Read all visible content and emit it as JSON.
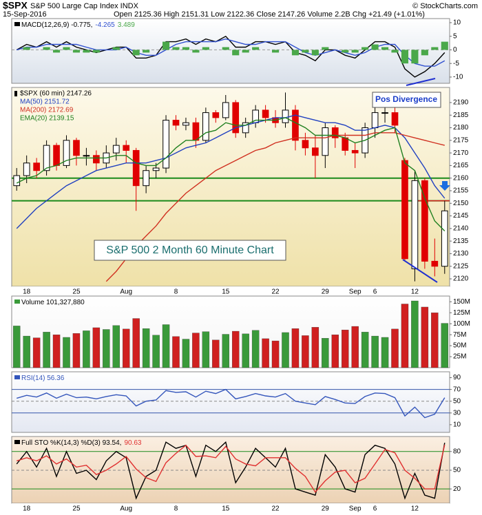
{
  "header": {
    "symbol": "$SPX",
    "name": "S&P 500 Large Cap Index INDX",
    "date": "15-Sep-2016",
    "quote": "Open 2125.36 High 2151.31 Low 2122.36 Close 2147.26 Volume 2.2B Chg +21.49 (+1.01%)",
    "credit": "© StockCharts.com"
  },
  "chart_data": [
    {
      "type": "line",
      "ylim": [
        -12.3,
        11.5
      ],
      "yticks": [
        10,
        5,
        0,
        -5,
        -10
      ],
      "levels": [
        0
      ],
      "level_color": "#999999",
      "series": [
        {
          "name": "MACD(12,26,9) -0.775,",
          "type": "line",
          "color": "#000000",
          "values": [
            0,
            2,
            1,
            3,
            1,
            3,
            1,
            0,
            -1,
            0,
            1,
            1,
            -3,
            -3,
            -2,
            3,
            3,
            4,
            2,
            4,
            3,
            5,
            1,
            1,
            3,
            3,
            2,
            3,
            -1,
            -2,
            -4,
            0,
            0,
            -2,
            -3,
            0,
            3,
            3,
            1,
            -7,
            -10,
            -8,
            -5,
            -1
          ]
        },
        {
          "name": "-4.265",
          "type": "line",
          "color": "#3050d0",
          "values": [
            0,
            1,
            1,
            2,
            2,
            2,
            2,
            1,
            0,
            0,
            0,
            1,
            -1,
            -2,
            -2,
            0,
            2,
            3,
            3,
            3,
            3,
            4,
            3,
            2,
            2,
            3,
            3,
            3,
            1,
            -1,
            -2,
            -1,
            0,
            -1,
            -2,
            -1,
            1,
            2,
            2,
            -2,
            -5,
            -6,
            -6,
            -4
          ]
        },
        {
          "name": "3.489",
          "type": "bar",
          "color": "#4aa84a",
          "values": [
            0,
            1,
            0,
            1,
            -1,
            1,
            -1,
            -1,
            -1,
            0,
            1,
            0,
            -2,
            -1,
            0,
            3,
            1,
            1,
            -1,
            1,
            0,
            1,
            -2,
            -1,
            1,
            0,
            -1,
            0,
            -2,
            -1,
            -2,
            1,
            0,
            -1,
            -1,
            1,
            2,
            1,
            -1,
            -5,
            -5,
            -2,
            1,
            3
          ]
        }
      ]
    },
    {
      "type": "candlestick",
      "name": "$SPX (60 min) 2147.26",
      "up_color": "#000000",
      "down_color": "#e00000",
      "categories": [
        null,
        "18",
        null,
        null,
        null,
        null,
        "25",
        null,
        null,
        null,
        null,
        "Aug",
        null,
        null,
        null,
        null,
        "8",
        null,
        null,
        null,
        null,
        "15",
        null,
        null,
        null,
        null,
        "22",
        null,
        null,
        null,
        null,
        "29",
        null,
        null,
        "Sep",
        null,
        "6",
        null,
        null,
        null,
        "12",
        null,
        null,
        null
      ],
      "open": [
        2157,
        2161,
        2166,
        2163,
        2173,
        2165,
        2175,
        2169,
        2169,
        2166,
        2170,
        2173,
        2171,
        2157,
        2163,
        2164,
        2183,
        2181,
        2182,
        2175,
        2186,
        2184,
        2190,
        2178,
        2182,
        2187,
        2184,
        2182,
        2187,
        2175,
        2172,
        2169,
        2180,
        2176,
        2171,
        2170,
        2180,
        2186,
        2186,
        2167,
        2124,
        2159,
        2127,
        2125
      ],
      "high": [
        2164,
        2169,
        2168,
        2175,
        2174,
        2177,
        2176,
        2172,
        2171,
        2173,
        2176,
        2175,
        2172,
        2165,
        2166,
        2185,
        2185,
        2184,
        2184,
        2188,
        2187,
        2193,
        2191,
        2184,
        2189,
        2189,
        2187,
        2194,
        2189,
        2178,
        2177,
        2182,
        2181,
        2178,
        2174,
        2182,
        2188,
        2188,
        2188,
        2168,
        2163,
        2160,
        2136,
        2151
      ],
      "low": [
        2155,
        2158,
        2160,
        2161,
        2163,
        2164,
        2165,
        2165,
        2163,
        2164,
        2167,
        2166,
        2147,
        2154,
        2160,
        2162,
        2179,
        2179,
        2172,
        2174,
        2182,
        2183,
        2176,
        2176,
        2180,
        2182,
        2180,
        2180,
        2171,
        2169,
        2160,
        2164,
        2172,
        2169,
        2164,
        2168,
        2176,
        2182,
        2178,
        2127,
        2119,
        2124,
        2121,
        2122
      ],
      "close": [
        2161,
        2166,
        2163,
        2173,
        2165,
        2175,
        2169,
        2169,
        2166,
        2170,
        2173,
        2171,
        2157,
        2163,
        2164,
        2183,
        2181,
        2182,
        2175,
        2186,
        2184,
        2190,
        2178,
        2182,
        2187,
        2184,
        2182,
        2187,
        2175,
        2172,
        2169,
        2180,
        2176,
        2171,
        2170,
        2180,
        2186,
        2186,
        2181,
        2128,
        2159,
        2127,
        2125,
        2147
      ],
      "ylim": [
        2117,
        2196
      ],
      "yticks": [
        2120,
        2125,
        2130,
        2135,
        2140,
        2145,
        2150,
        2155,
        2160,
        2165,
        2170,
        2175,
        2180,
        2185,
        2190
      ],
      "levels": [
        2160,
        2151
      ],
      "level_color": "#1a8a1a",
      "resistance_color": "#e02020",
      "series": [
        {
          "name": "MA(50) 2151.72",
          "type": "line",
          "color": "#2040c0",
          "values": [
            2140,
            2144,
            2148,
            2151,
            2154,
            2157,
            2159,
            2161,
            2163,
            2164,
            2165,
            2166,
            2166,
            2166,
            2167,
            2168,
            2170,
            2172,
            2173,
            2174,
            2176,
            2178,
            2180,
            2181,
            2182,
            2183,
            2184,
            2184,
            2185,
            2184,
            2183,
            2182,
            2182,
            2181,
            2179,
            2179,
            2180,
            2181,
            2180,
            2176,
            2170,
            2164,
            2157,
            2152
          ]
        },
        {
          "name": "MA(200) 2172.69",
          "type": "line",
          "color": "#d03020",
          "values": [
            null,
            null,
            null,
            null,
            null,
            null,
            null,
            null,
            null,
            2119,
            2123,
            2128,
            2133,
            2137,
            2141,
            2146,
            2150,
            2154,
            2157,
            2160,
            2163,
            2165,
            2167,
            2169,
            2171,
            2172,
            2174,
            2175,
            2176,
            2176,
            2176,
            2176,
            2177,
            2177,
            2177,
            2177,
            2178,
            2178,
            2178,
            2177,
            2176,
            2175,
            2174,
            2173
          ]
        },
        {
          "name": "EMA(20) 2139.15",
          "type": "line",
          "color": "#208020",
          "values": [
            2158,
            2160,
            2161,
            2164,
            2165,
            2167,
            2168,
            2168,
            2168,
            2168,
            2169,
            2169,
            2166,
            2165,
            2165,
            2168,
            2172,
            2175,
            2175,
            2178,
            2179,
            2182,
            2181,
            2181,
            2183,
            2183,
            2183,
            2184,
            2182,
            2180,
            2177,
            2177,
            2177,
            2176,
            2174,
            2175,
            2177,
            2179,
            2180,
            2166,
            2163,
            2152,
            2143,
            2139
          ]
        }
      ],
      "annotations": [
        "Pos Divergence",
        "S&P 500 2 Month 60 Minute Chart"
      ]
    },
    {
      "type": "bar",
      "ylim": [
        0,
        163000000
      ],
      "up_color": "#3a9a3a",
      "down_color": "#d02020",
      "yticks": [
        {
          "value": 25000000,
          "label": "25M"
        },
        {
          "value": 50000000,
          "label": "50M"
        },
        {
          "value": 75000000,
          "label": "75M"
        },
        {
          "value": 100000000,
          "label": "100M"
        },
        {
          "value": 125000000,
          "label": "125M"
        },
        {
          "value": 150000000,
          "label": "150M"
        }
      ],
      "series": [
        {
          "name": "Volume 101,327,880",
          "type": "bar",
          "values": [
            95000000.0,
            72000000.0,
            68000000.0,
            81000000.0,
            75000000.0,
            69000000.0,
            78000000.0,
            84000000.0,
            91000000.0,
            87000000.0,
            96000000.0,
            88000000.0,
            112000000.0,
            89000000.0,
            74000000.0,
            98000000.0,
            71000000.0,
            65000000.0,
            79000000.0,
            82000000.0,
            63000000.0,
            76000000.0,
            83000000.0,
            77000000.0,
            85000000.0,
            66000000.0,
            61000000.0,
            80000000.0,
            89000000.0,
            73000000.0,
            92000000.0,
            67000000.0,
            75000000.0,
            86000000.0,
            94000000.0,
            81000000.0,
            72000000.0,
            69000000.0,
            88000000.0,
            145000000.0,
            152000000.0,
            138000000.0,
            125000000.0,
            101000000.0
          ]
        }
      ]
    },
    {
      "type": "line",
      "ylim": [
        -3,
        100
      ],
      "yticks": [
        10,
        30,
        50,
        70,
        90
      ],
      "levels": [
        70,
        50,
        30
      ],
      "level_color": "#3355aa",
      "series": [
        {
          "name": "RSI(14) 56.36",
          "type": "line",
          "color": "#3355bb",
          "values": [
            55,
            60,
            57,
            64,
            55,
            62,
            56,
            57,
            54,
            58,
            61,
            59,
            42,
            50,
            52,
            68,
            65,
            66,
            57,
            67,
            63,
            70,
            54,
            58,
            63,
            59,
            57,
            63,
            50,
            47,
            44,
            58,
            53,
            47,
            46,
            58,
            64,
            63,
            56,
            25,
            40,
            22,
            28,
            56
          ]
        }
      ]
    },
    {
      "type": "line",
      "ylim": [
        -3,
        104
      ],
      "yticks": [
        20,
        50,
        80
      ],
      "levels": [
        80,
        50,
        20
      ],
      "level_color": "#1a8a1a",
      "categories": [
        null,
        "18",
        null,
        null,
        null,
        null,
        "25",
        null,
        null,
        null,
        null,
        "Aug",
        null,
        null,
        null,
        null,
        "8",
        null,
        null,
        null,
        null,
        "15",
        null,
        null,
        null,
        null,
        "22",
        null,
        null,
        null,
        null,
        "29",
        null,
        null,
        "Sep",
        null,
        "6",
        null,
        null,
        null,
        "12",
        null,
        null,
        null
      ],
      "series": [
        {
          "name": "Full STO %K(14,3) %D(3) 93.54,",
          "type": "line",
          "color": "#000000",
          "values": [
            60,
            80,
            55,
            85,
            40,
            80,
            45,
            50,
            35,
            65,
            80,
            70,
            5,
            40,
            50,
            95,
            85,
            90,
            40,
            90,
            80,
            95,
            30,
            55,
            85,
            70,
            55,
            85,
            20,
            15,
            10,
            75,
            55,
            20,
            15,
            75,
            90,
            85,
            60,
            5,
            45,
            10,
            5,
            94
          ]
        },
        {
          "name": "90.63",
          "type": "line",
          "color": "#e03030",
          "values": [
            65,
            70,
            65,
            73,
            60,
            68,
            55,
            58,
            43,
            50,
            60,
            72,
            52,
            38,
            32,
            62,
            77,
            90,
            72,
            73,
            70,
            88,
            68,
            60,
            57,
            70,
            70,
            70,
            53,
            40,
            15,
            33,
            47,
            50,
            30,
            37,
            60,
            83,
            78,
            50,
            37,
            20,
            20,
            91
          ]
        }
      ]
    }
  ]
}
